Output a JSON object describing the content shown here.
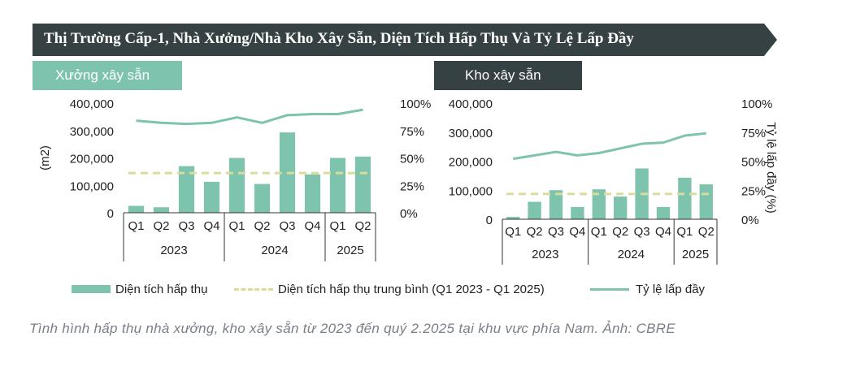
{
  "banner": {
    "title": "Thị Trường Cấp-1, Nhà Xưởng/Nhà Kho Xây Sẵn, Diện Tích Hấp Thụ Và Tỷ Lệ Lấp Đầy"
  },
  "legend": {
    "absorption": "Diện tích hấp thụ",
    "average": "Diện tích hấp thụ trung bình (Q1 2023 - Q1 2025)",
    "occupancy": "Tỷ lệ lấp đầy"
  },
  "caption": "Tình hình hấp thụ nhà xưởng, kho xây sẵn từ 2023 đến quý 2.2025 tại khu vực phía Nam. Ảnh: CBRE",
  "colors": {
    "bar": "#7ec3ae",
    "line": "#7ec3ae",
    "dash": "#d9dc9a",
    "banner": "#354142",
    "tagLeft": "#7ec3ae",
    "tagRight": "#354142"
  },
  "chart_data": [
    {
      "type": "bar",
      "title": "Xưởng xây sẵn",
      "ylabel": "(m2)",
      "y2label": "",
      "categories": [
        "Q1",
        "Q2",
        "Q3",
        "Q4",
        "Q1",
        "Q2",
        "Q3",
        "Q4",
        "Q1",
        "Q2"
      ],
      "groups": [
        {
          "label": "2023",
          "span": 4
        },
        {
          "label": "2024",
          "span": 4
        },
        {
          "label": "2025",
          "span": 2
        }
      ],
      "ylim": [
        0,
        400000
      ],
      "yticks": [
        "0",
        "100,000",
        "200,000",
        "300,000",
        "400,000"
      ],
      "y2lim": [
        0,
        100
      ],
      "y2ticks": [
        "0%",
        "25%",
        "50%",
        "75%",
        "100%"
      ],
      "series": [
        {
          "name": "Diện tích hấp thụ",
          "kind": "bar",
          "values": [
            25000,
            20000,
            170000,
            113000,
            200000,
            105000,
            293000,
            140000,
            200000,
            205000
          ]
        },
        {
          "name": "Diện tích hấp thụ trung bình (Q1 2023 - Q1 2025)",
          "kind": "dashed",
          "values": [
            145000,
            145000,
            145000,
            145000,
            145000,
            145000,
            145000,
            145000,
            145000,
            145000
          ]
        },
        {
          "name": "Tỷ lệ lấp đầy",
          "kind": "line",
          "axis": "right",
          "values": [
            84,
            82,
            81,
            82,
            87,
            82,
            89,
            90,
            90,
            94
          ]
        }
      ]
    },
    {
      "type": "bar",
      "title": "Kho xây sẵn",
      "ylabel": "",
      "y2label": "Tỷ lệ lấp đầy (%)",
      "categories": [
        "Q1",
        "Q2",
        "Q3",
        "Q4",
        "Q1",
        "Q2",
        "Q3",
        "Q4",
        "Q1",
        "Q2"
      ],
      "groups": [
        {
          "label": "2023",
          "span": 4
        },
        {
          "label": "2024",
          "span": 4
        },
        {
          "label": "2025",
          "span": 2
        }
      ],
      "ylim": [
        0,
        400000
      ],
      "yticks": [
        "0",
        "100,000",
        "200,000",
        "300,000",
        "400,000"
      ],
      "y2lim": [
        0,
        100
      ],
      "y2ticks": [
        "0%",
        "25%",
        "50%",
        "75%",
        "100%"
      ],
      "series": [
        {
          "name": "Diện tích hấp thụ",
          "kind": "bar",
          "values": [
            8000,
            60000,
            100000,
            42000,
            103000,
            78000,
            175000,
            42000,
            143000,
            120000
          ]
        },
        {
          "name": "Diện tích hấp thụ trung bình (Q1 2023 - Q1 2025)",
          "kind": "dashed",
          "values": [
            87000,
            87000,
            87000,
            87000,
            87000,
            87000,
            87000,
            87000,
            87000,
            87000
          ]
        },
        {
          "name": "Tỷ lệ lấp đầy",
          "kind": "line",
          "axis": "right",
          "values": [
            52,
            55,
            58,
            55,
            57,
            61,
            65,
            66,
            72,
            74
          ]
        }
      ]
    }
  ]
}
